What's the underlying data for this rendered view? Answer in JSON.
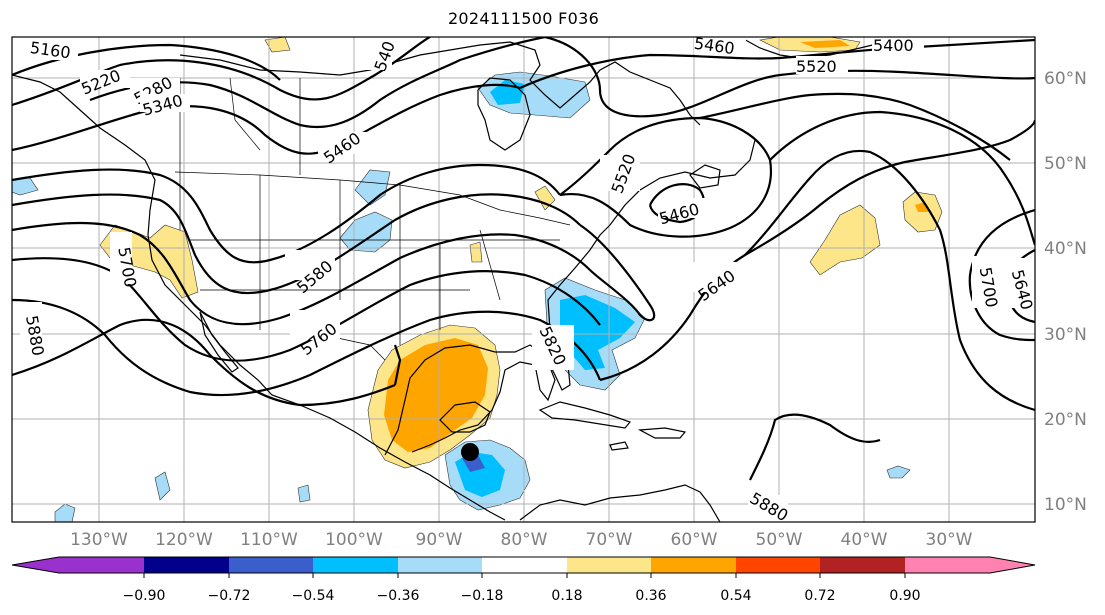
{
  "title": "2024111500 F036",
  "map": {
    "lon_labels": [
      "130°W",
      "120°W",
      "110°W",
      "100°W",
      "90°W",
      "80°W",
      "70°W",
      "60°W",
      "50°W",
      "40°W",
      "30°W"
    ],
    "lat_labels": [
      "60°N",
      "50°N",
      "40°N",
      "30°N",
      "20°N",
      "10°N"
    ],
    "contour_labels": [
      "5160",
      "5220",
      "5280",
      "5340",
      "540",
      "5460",
      "5460",
      "5520",
      "5400",
      "5460",
      "5520",
      "5580",
      "5640",
      "5700",
      "5760",
      "5820",
      "5880",
      "5700",
      "5640",
      "5880"
    ],
    "contour_color": "#000000",
    "storm_marker": {
      "name": "storm center",
      "lon": -86.3,
      "lat": 16.2,
      "color": "#000000"
    }
  },
  "colorbar": {
    "ticks": [
      "−0.90",
      "−0.72",
      "−0.54",
      "−0.36",
      "−0.18",
      "0.18",
      "0.36",
      "0.54",
      "0.72",
      "0.90"
    ],
    "colors": [
      "#9932cc",
      "#00008b",
      "#3a5fcd",
      "#00bfff",
      "#a6dcf8",
      "#ffffff",
      "#fde68a",
      "#ffa500",
      "#ff4500",
      "#b22222",
      "#ff82b0"
    ]
  }
}
